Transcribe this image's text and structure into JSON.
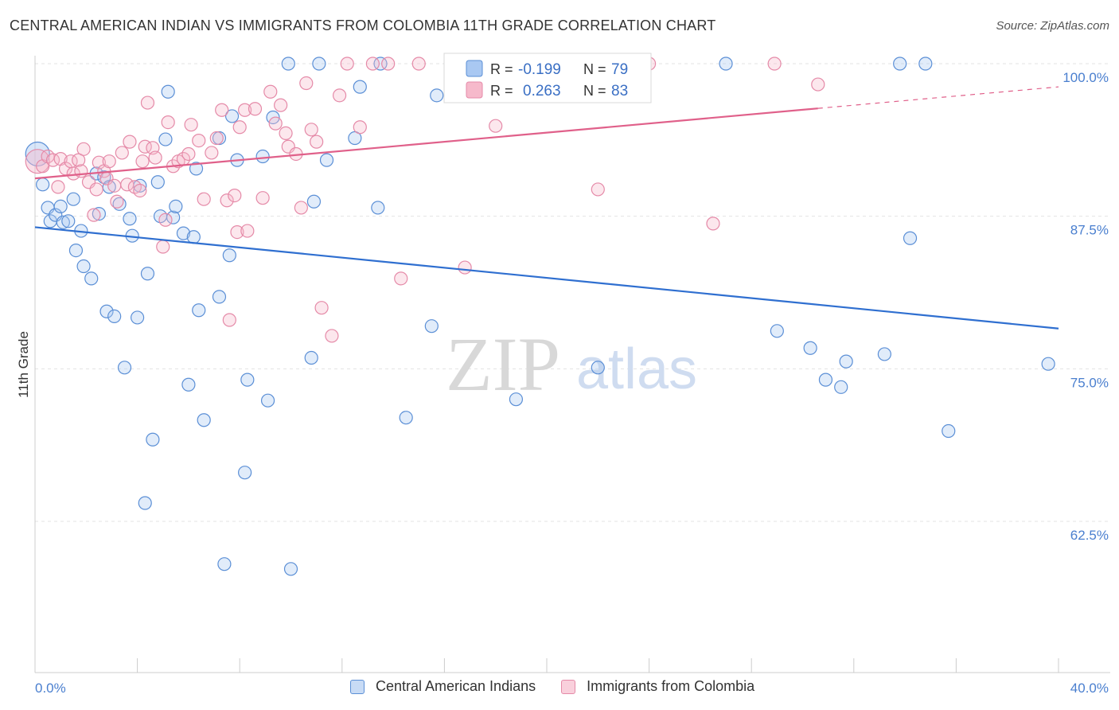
{
  "title": "CENTRAL AMERICAN INDIAN VS IMMIGRANTS FROM COLOMBIA 11TH GRADE CORRELATION CHART",
  "source": "Source: ZipAtlas.com",
  "watermark": {
    "zip": "ZIP",
    "atlas": "atlas"
  },
  "legend": {
    "r_label": "R =",
    "n_label": "N =",
    "series1": {
      "r": "-0.199",
      "n": "79"
    },
    "series2": {
      "r": "0.263",
      "n": "83"
    }
  },
  "colors": {
    "blue_fill": "#a9c8f2",
    "blue_stroke": "#5b8fd6",
    "blue_line": "#2f6fd0",
    "pink_fill": "#f6b9cb",
    "pink_stroke": "#e58aa8",
    "pink_line": "#e0608a",
    "tick_text": "#4a7fcf",
    "grid": "#e3e3e3"
  },
  "chart_data": {
    "type": "scatter",
    "title": "CENTRAL AMERICAN INDIAN VS IMMIGRANTS FROM COLOMBIA 11TH GRADE CORRELATION CHART",
    "xlabel": "",
    "ylabel": "11th Grade",
    "xlim": [
      0,
      40
    ],
    "ylim": [
      50,
      100.5
    ],
    "x_tick_labels": [
      "0.0%",
      "40.0%"
    ],
    "y_tick_labels": [
      "100.0%",
      "87.5%",
      "75.0%",
      "62.5%"
    ],
    "y_ticks": [
      100,
      87.5,
      75,
      62.5
    ],
    "grid": true,
    "legend_position": "top-center",
    "series": [
      {
        "name": "Central American Indians",
        "r": -0.199,
        "n": 79,
        "trend": {
          "x": [
            0,
            40
          ],
          "y": [
            86.6,
            78.3
          ]
        },
        "points": [
          [
            0.1,
            92.6
          ],
          [
            0.3,
            90.1
          ],
          [
            0.5,
            88.2
          ],
          [
            0.6,
            87.1
          ],
          [
            0.8,
            87.6
          ],
          [
            1.0,
            88.3
          ],
          [
            1.1,
            87.0
          ],
          [
            1.3,
            87.1
          ],
          [
            1.5,
            88.9
          ],
          [
            1.6,
            84.7
          ],
          [
            1.8,
            86.3
          ],
          [
            1.9,
            83.4
          ],
          [
            2.2,
            82.4
          ],
          [
            2.4,
            91.0
          ],
          [
            2.5,
            87.7
          ],
          [
            2.7,
            90.7
          ],
          [
            2.8,
            79.7
          ],
          [
            2.9,
            89.9
          ],
          [
            3.1,
            79.3
          ],
          [
            3.3,
            88.5
          ],
          [
            3.5,
            75.1
          ],
          [
            3.7,
            87.3
          ],
          [
            3.8,
            85.9
          ],
          [
            4.0,
            79.2
          ],
          [
            4.1,
            90.0
          ],
          [
            4.3,
            64.0
          ],
          [
            4.4,
            82.8
          ],
          [
            4.6,
            69.2
          ],
          [
            4.8,
            90.3
          ],
          [
            4.9,
            87.5
          ],
          [
            5.1,
            93.8
          ],
          [
            5.2,
            97.7
          ],
          [
            5.4,
            87.4
          ],
          [
            5.5,
            88.3
          ],
          [
            5.8,
            86.1
          ],
          [
            6.0,
            73.7
          ],
          [
            6.2,
            85.8
          ],
          [
            6.3,
            91.4
          ],
          [
            6.4,
            79.8
          ],
          [
            6.6,
            70.8
          ],
          [
            7.2,
            93.9
          ],
          [
            7.2,
            80.9
          ],
          [
            7.4,
            59.0
          ],
          [
            7.6,
            84.3
          ],
          [
            7.7,
            95.7
          ],
          [
            7.9,
            92.1
          ],
          [
            8.2,
            66.5
          ],
          [
            8.3,
            74.1
          ],
          [
            8.9,
            92.4
          ],
          [
            9.1,
            72.4
          ],
          [
            9.3,
            95.6
          ],
          [
            9.9,
            100.0
          ],
          [
            10.0,
            58.6
          ],
          [
            10.8,
            75.9
          ],
          [
            10.9,
            88.7
          ],
          [
            11.1,
            100.0
          ],
          [
            11.4,
            92.1
          ],
          [
            12.5,
            93.9
          ],
          [
            12.7,
            98.1
          ],
          [
            13.4,
            88.2
          ],
          [
            13.5,
            100.0
          ],
          [
            14.5,
            71.0
          ],
          [
            15.5,
            78.5
          ],
          [
            15.7,
            97.4
          ],
          [
            18.8,
            72.5
          ],
          [
            20.0,
            100.0
          ],
          [
            22.0,
            75.1
          ],
          [
            27.0,
            100.0
          ],
          [
            29.0,
            78.1
          ],
          [
            30.3,
            76.7
          ],
          [
            30.9,
            74.1
          ],
          [
            31.5,
            73.5
          ],
          [
            31.7,
            75.6
          ],
          [
            33.2,
            76.2
          ],
          [
            33.8,
            100.0
          ],
          [
            34.2,
            85.7
          ],
          [
            34.8,
            100.0
          ],
          [
            35.7,
            69.9
          ],
          [
            39.6,
            75.4
          ]
        ]
      },
      {
        "name": "Immigrants from Colombia",
        "r": 0.263,
        "n": 83,
        "trend": {
          "x": [
            0,
            40
          ],
          "y": [
            90.6,
            98.1
          ]
        },
        "points": [
          [
            0.1,
            92.0
          ],
          [
            0.3,
            91.6
          ],
          [
            0.5,
            92.4
          ],
          [
            0.7,
            92.1
          ],
          [
            0.9,
            89.9
          ],
          [
            1.0,
            92.2
          ],
          [
            1.2,
            91.4
          ],
          [
            1.4,
            92.0
          ],
          [
            1.5,
            91.0
          ],
          [
            1.7,
            92.1
          ],
          [
            1.8,
            91.2
          ],
          [
            1.9,
            93.0
          ],
          [
            2.1,
            90.3
          ],
          [
            2.3,
            87.6
          ],
          [
            2.4,
            89.7
          ],
          [
            2.5,
            91.9
          ],
          [
            2.7,
            91.2
          ],
          [
            2.8,
            90.6
          ],
          [
            2.9,
            92.0
          ],
          [
            3.1,
            90.0
          ],
          [
            3.2,
            88.7
          ],
          [
            3.4,
            92.7
          ],
          [
            3.6,
            90.1
          ],
          [
            3.7,
            93.6
          ],
          [
            3.9,
            89.9
          ],
          [
            4.1,
            89.6
          ],
          [
            4.2,
            92.0
          ],
          [
            4.3,
            93.2
          ],
          [
            4.4,
            96.8
          ],
          [
            4.6,
            93.1
          ],
          [
            4.7,
            92.3
          ],
          [
            5.0,
            85.0
          ],
          [
            5.1,
            87.2
          ],
          [
            5.2,
            95.2
          ],
          [
            5.4,
            91.6
          ],
          [
            5.6,
            92.0
          ],
          [
            5.8,
            92.2
          ],
          [
            6.0,
            92.6
          ],
          [
            6.1,
            95.0
          ],
          [
            6.4,
            93.7
          ],
          [
            6.6,
            88.9
          ],
          [
            6.9,
            92.7
          ],
          [
            7.1,
            93.9
          ],
          [
            7.3,
            96.2
          ],
          [
            7.5,
            88.8
          ],
          [
            7.6,
            79.0
          ],
          [
            7.8,
            89.2
          ],
          [
            7.9,
            86.2
          ],
          [
            8.0,
            94.8
          ],
          [
            8.2,
            96.2
          ],
          [
            8.3,
            86.3
          ],
          [
            8.6,
            96.3
          ],
          [
            8.9,
            89.0
          ],
          [
            9.2,
            97.7
          ],
          [
            9.4,
            95.1
          ],
          [
            9.6,
            96.6
          ],
          [
            9.8,
            94.3
          ],
          [
            9.9,
            93.2
          ],
          [
            10.2,
            92.6
          ],
          [
            10.4,
            88.2
          ],
          [
            10.6,
            98.4
          ],
          [
            10.8,
            94.6
          ],
          [
            11.0,
            93.6
          ],
          [
            11.2,
            80.0
          ],
          [
            11.6,
            77.7
          ],
          [
            11.9,
            97.4
          ],
          [
            12.2,
            100.0
          ],
          [
            12.7,
            94.8
          ],
          [
            13.2,
            100.0
          ],
          [
            13.8,
            100.0
          ],
          [
            14.3,
            82.4
          ],
          [
            15.0,
            100.0
          ],
          [
            16.8,
            83.3
          ],
          [
            17.0,
            100.0
          ],
          [
            17.8,
            100.0
          ],
          [
            18.0,
            94.9
          ],
          [
            19.6,
            100.0
          ],
          [
            21.1,
            100.0
          ],
          [
            22.0,
            89.7
          ],
          [
            24.0,
            100.0
          ],
          [
            26.5,
            86.9
          ],
          [
            28.9,
            100.0
          ],
          [
            30.6,
            98.3
          ]
        ]
      }
    ]
  },
  "bottom_legend": {
    "series1": "Central American Indians",
    "series2": "Immigrants from Colombia"
  }
}
